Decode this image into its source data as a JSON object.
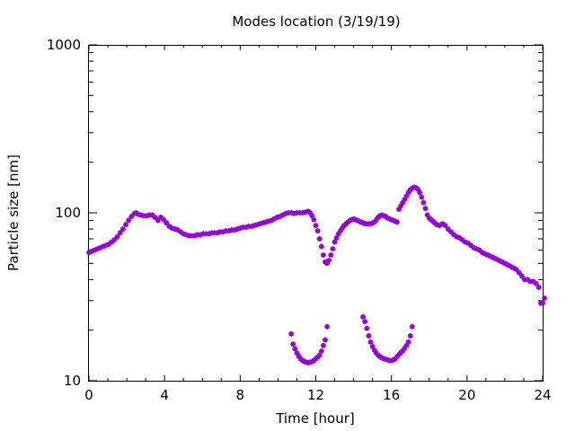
{
  "chart_data": {
    "type": "scatter",
    "title": "Modes location (3/19/19)",
    "xlabel": "Time [hour]",
    "ylabel": "Particle size [nm]",
    "xlim": [
      0,
      24
    ],
    "ylim": [
      10,
      1000
    ],
    "yscale": "log",
    "x_ticks": [
      0,
      4,
      8,
      12,
      16,
      20,
      24
    ],
    "x_tick_labels": [
      "0",
      "4",
      "8",
      "12",
      "16",
      "20",
      "24"
    ],
    "y_ticks": [
      10,
      100,
      1000
    ],
    "y_tick_labels": [
      "10",
      "100",
      "1000"
    ],
    "grid": false,
    "legend": "none",
    "marker": "asterisk",
    "colors": {
      "series": "#9400d3",
      "axes": "#000000",
      "background": "#ffffff"
    },
    "series": [
      {
        "points": [
          [
            0.0,
            58
          ],
          [
            0.15,
            59
          ],
          [
            0.3,
            60
          ],
          [
            0.45,
            61
          ],
          [
            0.6,
            62
          ],
          [
            0.75,
            63
          ],
          [
            0.9,
            64
          ],
          [
            1.05,
            65
          ],
          [
            1.2,
            67
          ],
          [
            1.35,
            69
          ],
          [
            1.5,
            72
          ],
          [
            1.65,
            76
          ],
          [
            1.8,
            80
          ],
          [
            1.95,
            85
          ],
          [
            2.1,
            90
          ],
          [
            2.25,
            95
          ],
          [
            2.4,
            99
          ],
          [
            2.5,
            100
          ],
          [
            2.6,
            98
          ],
          [
            2.75,
            97
          ],
          [
            2.9,
            96
          ],
          [
            3.05,
            96
          ],
          [
            3.2,
            97
          ],
          [
            3.35,
            97
          ],
          [
            3.5,
            94
          ],
          [
            3.65,
            90
          ],
          [
            3.8,
            94
          ],
          [
            3.95,
            91
          ],
          [
            4.1,
            87
          ],
          [
            4.25,
            83
          ],
          [
            4.4,
            81
          ],
          [
            4.55,
            80
          ],
          [
            4.7,
            79
          ],
          [
            4.85,
            77
          ],
          [
            5.0,
            75
          ],
          [
            5.15,
            74
          ],
          [
            5.3,
            73
          ],
          [
            5.45,
            73
          ],
          [
            5.6,
            73
          ],
          [
            5.75,
            74
          ],
          [
            5.9,
            74
          ],
          [
            6.05,
            75
          ],
          [
            6.2,
            75
          ],
          [
            6.35,
            75
          ],
          [
            6.5,
            76
          ],
          [
            6.65,
            76
          ],
          [
            6.8,
            76
          ],
          [
            6.95,
            77
          ],
          [
            7.1,
            77
          ],
          [
            7.25,
            78
          ],
          [
            7.4,
            78
          ],
          [
            7.55,
            79
          ],
          [
            7.7,
            79
          ],
          [
            7.85,
            80
          ],
          [
            8.0,
            81
          ],
          [
            8.15,
            82
          ],
          [
            8.3,
            82
          ],
          [
            8.45,
            83
          ],
          [
            8.6,
            83
          ],
          [
            8.75,
            84
          ],
          [
            8.9,
            85
          ],
          [
            9.05,
            86
          ],
          [
            9.2,
            87
          ],
          [
            9.35,
            88
          ],
          [
            9.5,
            89
          ],
          [
            9.65,
            90
          ],
          [
            9.8,
            92
          ],
          [
            9.95,
            94
          ],
          [
            10.1,
            95
          ],
          [
            10.25,
            97
          ],
          [
            10.4,
            99
          ],
          [
            10.55,
            100
          ],
          [
            10.7,
            100
          ],
          [
            10.85,
            99
          ],
          [
            11.0,
            100
          ],
          [
            11.15,
            100
          ],
          [
            11.3,
            100
          ],
          [
            11.45,
            101
          ],
          [
            11.6,
            102
          ],
          [
            11.7,
            100
          ],
          [
            11.8,
            96
          ],
          [
            11.9,
            91
          ],
          [
            12.0,
            84
          ],
          [
            12.1,
            78
          ],
          [
            12.2,
            70
          ],
          [
            12.3,
            63
          ],
          [
            12.4,
            56
          ],
          [
            12.5,
            51
          ],
          [
            12.6,
            50
          ],
          [
            12.7,
            52
          ],
          [
            12.8,
            56
          ],
          [
            12.9,
            61
          ],
          [
            13.0,
            67
          ],
          [
            13.1,
            71
          ],
          [
            13.2,
            75
          ],
          [
            13.3,
            78
          ],
          [
            13.4,
            81
          ],
          [
            13.5,
            84
          ],
          [
            13.6,
            86
          ],
          [
            13.7,
            88
          ],
          [
            13.8,
            90
          ],
          [
            13.9,
            91
          ],
          [
            14.0,
            92
          ],
          [
            14.1,
            91
          ],
          [
            14.2,
            90
          ],
          [
            14.3,
            89
          ],
          [
            14.4,
            88
          ],
          [
            14.5,
            87
          ],
          [
            14.6,
            86
          ],
          [
            14.7,
            86
          ],
          [
            14.8,
            86
          ],
          [
            14.9,
            86
          ],
          [
            15.0,
            87
          ],
          [
            15.1,
            88
          ],
          [
            15.2,
            91
          ],
          [
            15.3,
            94
          ],
          [
            15.4,
            96
          ],
          [
            15.5,
            97
          ],
          [
            15.6,
            96
          ],
          [
            15.7,
            95
          ],
          [
            15.8,
            93
          ],
          [
            15.9,
            92
          ],
          [
            16.0,
            91
          ],
          [
            16.1,
            90
          ],
          [
            16.2,
            89
          ],
          [
            16.3,
            88
          ],
          [
            16.4,
            105
          ],
          [
            16.5,
            110
          ],
          [
            16.6,
            115
          ],
          [
            16.7,
            120
          ],
          [
            16.8,
            126
          ],
          [
            16.9,
            132
          ],
          [
            17.0,
            137
          ],
          [
            17.1,
            140
          ],
          [
            17.2,
            142
          ],
          [
            17.3,
            141
          ],
          [
            17.4,
            138
          ],
          [
            17.5,
            132
          ],
          [
            17.6,
            124
          ],
          [
            17.7,
            115
          ],
          [
            17.8,
            106
          ],
          [
            17.9,
            97
          ],
          [
            18.0,
            93
          ],
          [
            18.1,
            91
          ],
          [
            18.2,
            89
          ],
          [
            18.3,
            87
          ],
          [
            18.4,
            85
          ],
          [
            18.55,
            84
          ],
          [
            18.7,
            86
          ],
          [
            18.85,
            84
          ],
          [
            19.0,
            80
          ],
          [
            19.15,
            77
          ],
          [
            19.3,
            74
          ],
          [
            19.45,
            72
          ],
          [
            19.6,
            71
          ],
          [
            19.75,
            69
          ],
          [
            19.9,
            67
          ],
          [
            20.05,
            66
          ],
          [
            20.2,
            64
          ],
          [
            20.35,
            62
          ],
          [
            20.5,
            61
          ],
          [
            20.65,
            60
          ],
          [
            20.8,
            58
          ],
          [
            20.95,
            57
          ],
          [
            21.1,
            56
          ],
          [
            21.25,
            55
          ],
          [
            21.4,
            54
          ],
          [
            21.55,
            53
          ],
          [
            21.7,
            52
          ],
          [
            21.85,
            51
          ],
          [
            22.0,
            50
          ],
          [
            22.15,
            49
          ],
          [
            22.3,
            48
          ],
          [
            22.45,
            47
          ],
          [
            22.6,
            46
          ],
          [
            22.75,
            44
          ],
          [
            22.9,
            42
          ],
          [
            23.05,
            40
          ],
          [
            23.2,
            40
          ],
          [
            23.35,
            39
          ],
          [
            23.5,
            39
          ],
          [
            23.65,
            38
          ],
          [
            23.8,
            36
          ],
          [
            23.9,
            29
          ],
          [
            24.0,
            29
          ],
          [
            24.1,
            31
          ]
        ]
      },
      {
        "points": [
          [
            10.7,
            19
          ],
          [
            10.8,
            16.5
          ],
          [
            10.9,
            15.5
          ],
          [
            11.0,
            14.6
          ],
          [
            11.1,
            14.0
          ],
          [
            11.2,
            13.5
          ],
          [
            11.3,
            13.2
          ],
          [
            11.4,
            13.0
          ],
          [
            11.5,
            12.9
          ],
          [
            11.6,
            12.8
          ],
          [
            11.7,
            12.9
          ],
          [
            11.8,
            13.0
          ],
          [
            11.9,
            13.2
          ],
          [
            12.0,
            13.5
          ],
          [
            12.1,
            13.8
          ],
          [
            12.2,
            14.2
          ],
          [
            12.3,
            15.0
          ],
          [
            12.4,
            16.2
          ],
          [
            12.5,
            17.5
          ],
          [
            12.6,
            21.0
          ]
        ]
      },
      {
        "points": [
          [
            14.5,
            24
          ],
          [
            14.6,
            22.5
          ],
          [
            14.7,
            20.5
          ],
          [
            14.8,
            18.5
          ],
          [
            14.9,
            17.0
          ],
          [
            15.0,
            16.0
          ],
          [
            15.1,
            15.2
          ],
          [
            15.2,
            14.6
          ],
          [
            15.3,
            14.2
          ],
          [
            15.4,
            13.9
          ],
          [
            15.5,
            13.7
          ],
          [
            15.6,
            13.5
          ],
          [
            15.7,
            13.4
          ],
          [
            15.8,
            13.3
          ],
          [
            15.9,
            13.2
          ],
          [
            16.0,
            13.2
          ],
          [
            16.1,
            13.3
          ],
          [
            16.2,
            13.5
          ],
          [
            16.3,
            13.9
          ],
          [
            16.4,
            14.3
          ],
          [
            16.5,
            14.7
          ],
          [
            16.6,
            15.1
          ],
          [
            16.7,
            15.6
          ],
          [
            16.8,
            16.2
          ],
          [
            16.9,
            17.0
          ],
          [
            17.0,
            18.5
          ],
          [
            17.1,
            21.0
          ]
        ]
      }
    ]
  }
}
